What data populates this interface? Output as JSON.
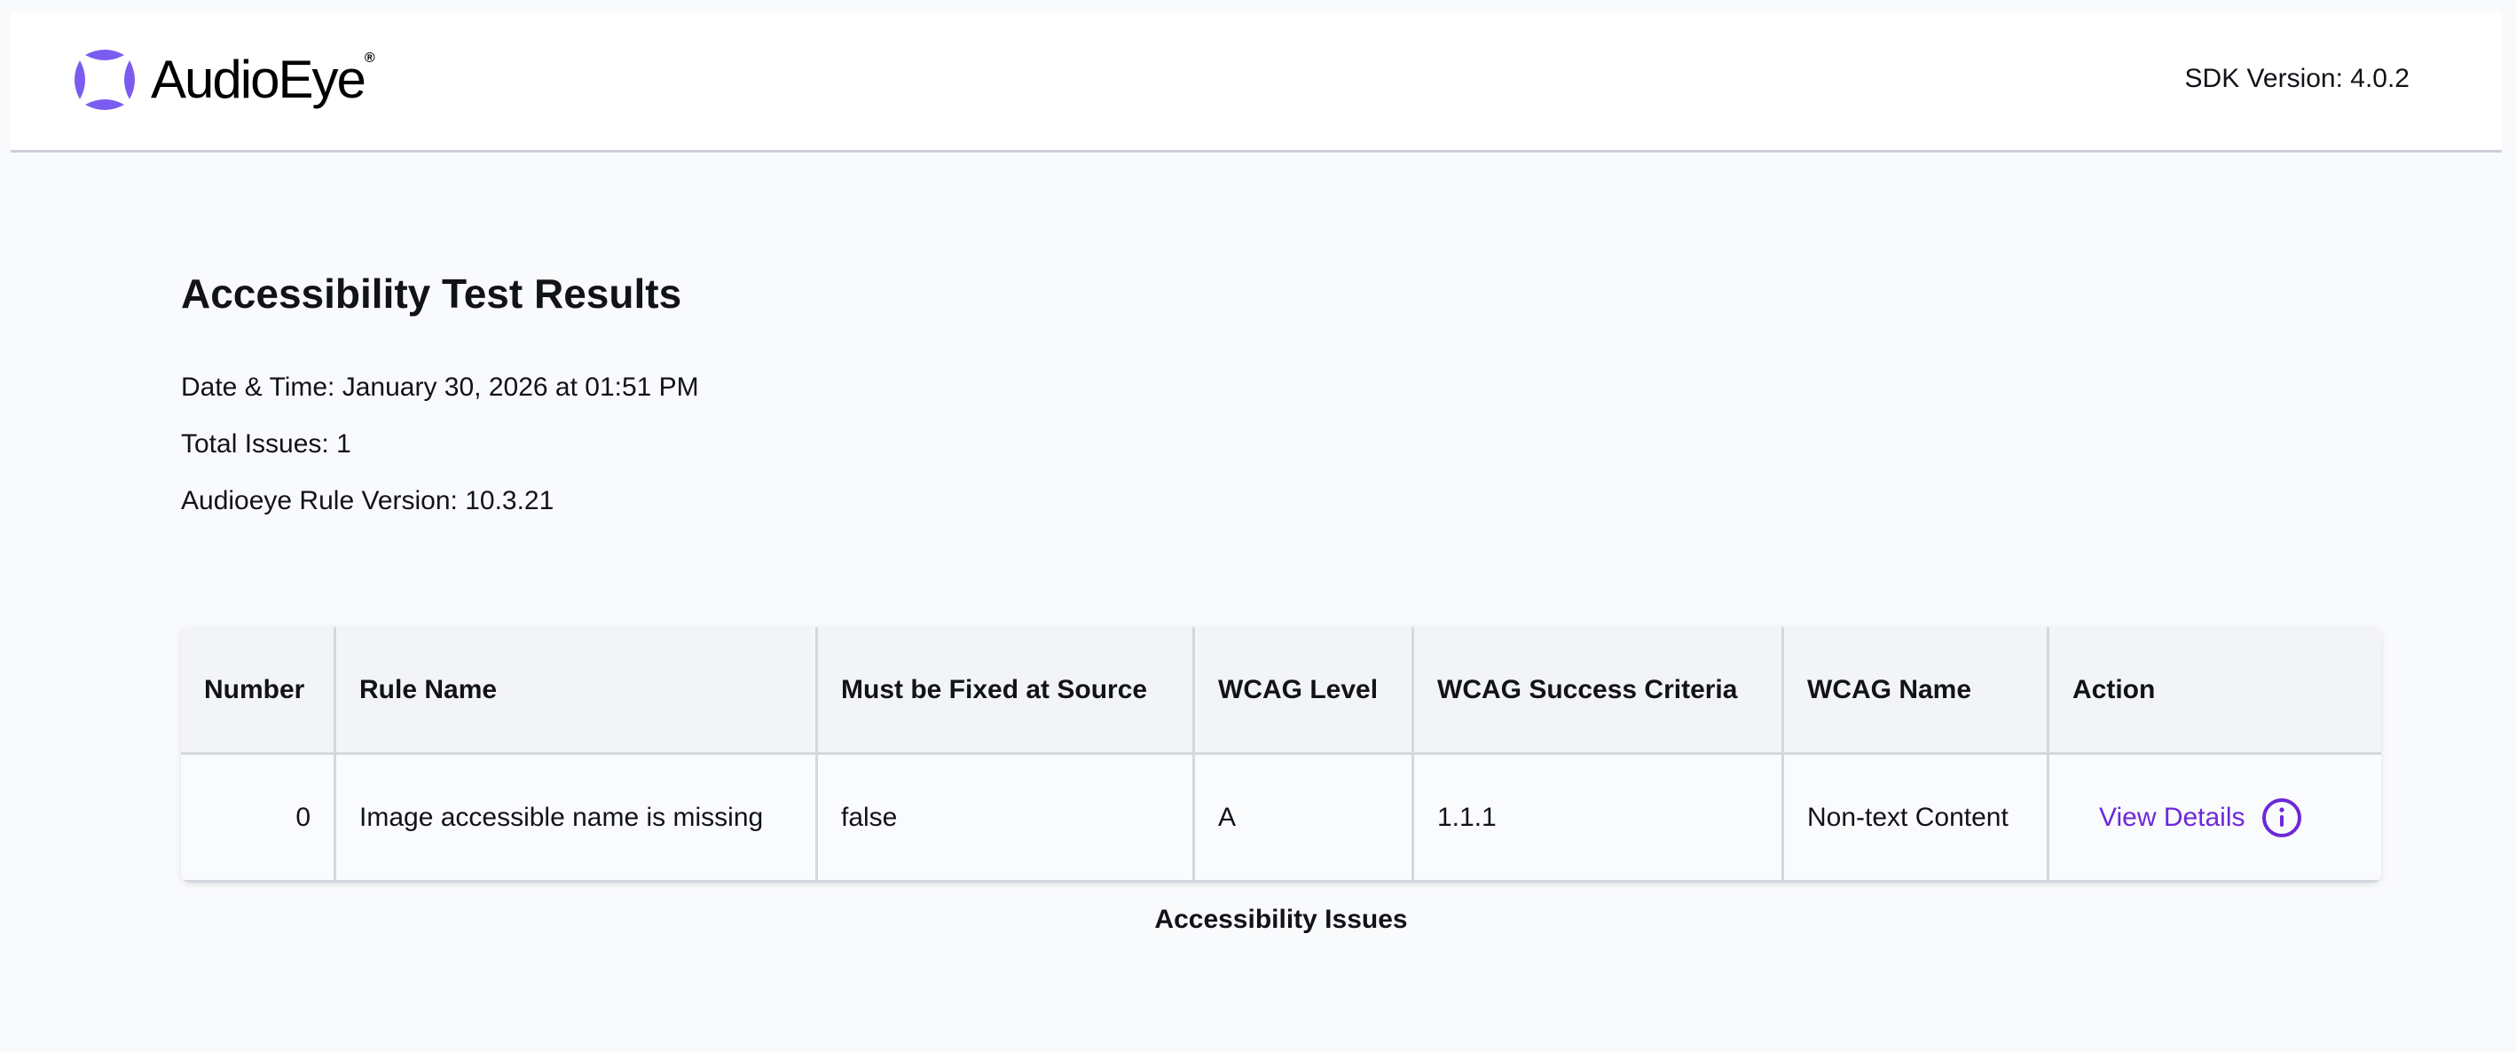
{
  "header": {
    "logo_text": "AudioEye",
    "logo_mark": "®",
    "sdk_version": "SDK Version: 4.0.2",
    "brand_color": "#7b5cf0"
  },
  "main": {
    "title": "Accessibility Test Results",
    "date_time": "Date & Time: January 30, 2026 at 01:51 PM",
    "total_issues": "Total Issues: 1",
    "rule_version": "Audioeye Rule Version: 10.3.21"
  },
  "table": {
    "columns": [
      "Number",
      "Rule Name",
      "Must be Fixed at Source",
      "WCAG Level",
      "WCAG Success Criteria",
      "WCAG Name",
      "Action"
    ],
    "rows": [
      {
        "number": "0",
        "rule_name": "Image accessible name is missing",
        "fixed_at_source": "false",
        "wcag_level": "A",
        "criteria": "1.1.1",
        "wcag_name": "Non-text Content",
        "action": "View Details",
        "action_icon": "info-circle-icon"
      }
    ],
    "caption": "Accessibility Issues",
    "action_color": "#6d28d9"
  }
}
